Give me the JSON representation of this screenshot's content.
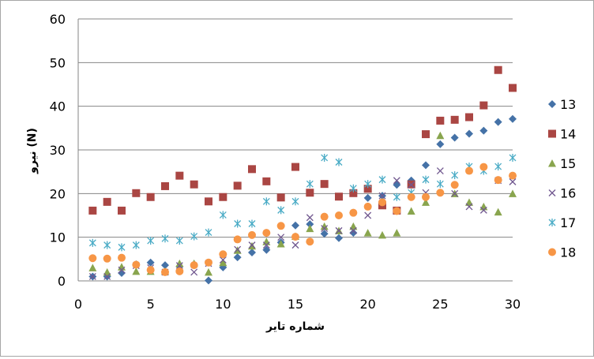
{
  "chart_data": {
    "type": "scatter",
    "xlabel": "شماره تایر",
    "ylabel": "نیرو (N)",
    "xlim": [
      0,
      30
    ],
    "ylim": [
      0,
      60
    ],
    "xticks": [
      0,
      5,
      10,
      15,
      20,
      25,
      30
    ],
    "yticks": [
      0,
      10,
      20,
      30,
      40,
      50,
      60
    ],
    "grid": "horizontal",
    "legend_position": "right",
    "series": [
      {
        "name": "13",
        "marker": "diamond",
        "color": "#4572A7",
        "x": [
          1,
          2,
          3,
          4,
          5,
          6,
          7,
          8,
          9,
          10,
          11,
          12,
          13,
          14,
          15,
          16,
          17,
          18,
          19,
          20,
          21,
          22,
          23,
          24,
          25,
          26,
          27,
          28,
          29,
          30
        ],
        "y": [
          1,
          1,
          1.8,
          3.8,
          4.2,
          3.6,
          3.3,
          3.7,
          0.1,
          3.1,
          5.4,
          6.5,
          7.1,
          8.8,
          12.7,
          13,
          10.8,
          9.8,
          11,
          19,
          19.5,
          22,
          23,
          26.5,
          31.3,
          32.8,
          33.7,
          34.4,
          36.4,
          37.1
        ]
      },
      {
        "name": "14",
        "marker": "square",
        "color": "#AA4643",
        "x": [
          1,
          2,
          3,
          4,
          5,
          6,
          7,
          8,
          9,
          10,
          11,
          12,
          13,
          14,
          15,
          16,
          17,
          18,
          19,
          20,
          21,
          22,
          23,
          24,
          25,
          26,
          27,
          28,
          29,
          30
        ],
        "y": [
          16.1,
          18.1,
          16.1,
          20.1,
          19.2,
          21.7,
          24.1,
          22.1,
          18.2,
          19.2,
          21.8,
          25.6,
          22.8,
          19.1,
          26.1,
          20.2,
          22.2,
          19.3,
          20.1,
          21.1,
          17.3,
          16.1,
          22.1,
          33.6,
          36.7,
          36.9,
          37.5,
          40.2,
          48.3,
          44.2
        ]
      },
      {
        "name": "15",
        "marker": "triangle",
        "color": "#89A54E",
        "x": [
          1,
          2,
          3,
          4,
          5,
          6,
          7,
          8,
          9,
          10,
          11,
          12,
          13,
          14,
          15,
          16,
          17,
          18,
          19,
          20,
          21,
          22,
          23,
          24,
          25,
          26,
          27,
          28,
          29,
          30
        ],
        "y": [
          3,
          2,
          3.2,
          2.2,
          2.2,
          2.2,
          4,
          4,
          2,
          4.2,
          7,
          8,
          9,
          8.5,
          10.2,
          12,
          12.5,
          11.5,
          12.5,
          11,
          10.5,
          11,
          16,
          18,
          33.3,
          20,
          18,
          17,
          15.8,
          20
        ]
      },
      {
        "name": "16",
        "marker": "x",
        "color": "#71588F",
        "x": [
          1,
          2,
          3,
          4,
          5,
          6,
          7,
          8,
          9,
          10,
          11,
          12,
          13,
          14,
          15,
          16,
          17,
          18,
          19,
          20,
          21,
          22,
          23,
          24,
          25,
          26,
          27,
          28,
          29,
          30
        ],
        "y": [
          1,
          1,
          2.5,
          3.5,
          3,
          2,
          3.5,
          2,
          4,
          4.8,
          7.2,
          8.2,
          8.2,
          10,
          8.2,
          14.5,
          12,
          11.5,
          11.5,
          15,
          19.5,
          23,
          22,
          20.2,
          25.2,
          20,
          17,
          16.2,
          23,
          22.7
        ]
      },
      {
        "name": "17",
        "marker": "star",
        "color": "#4BACC6",
        "x": [
          1,
          2,
          3,
          4,
          5,
          6,
          7,
          8,
          9,
          10,
          11,
          12,
          13,
          14,
          15,
          16,
          17,
          18,
          19,
          20,
          21,
          22,
          23,
          24,
          25,
          26,
          27,
          28,
          29,
          30
        ],
        "y": [
          8.7,
          8.2,
          7.7,
          8.2,
          9.2,
          9.7,
          9.2,
          10.2,
          11.1,
          15.1,
          13.1,
          13.1,
          18.2,
          16.2,
          18.2,
          22.2,
          28.2,
          27.2,
          21.2,
          22.2,
          23.2,
          19.2,
          20.2,
          23.2,
          22.2,
          24.2,
          26.2,
          25.2,
          26.2,
          28.2
        ]
      },
      {
        "name": "18",
        "marker": "circle",
        "color": "#F79646",
        "x": [
          1,
          2,
          3,
          4,
          5,
          6,
          7,
          8,
          9,
          10,
          11,
          12,
          13,
          14,
          15,
          16,
          17,
          18,
          19,
          20,
          21,
          22,
          23,
          24,
          25,
          26,
          27,
          28,
          29,
          30
        ],
        "y": [
          5.2,
          5.1,
          5.3,
          3.7,
          2.5,
          2,
          2.2,
          3.6,
          4.2,
          6.1,
          9.5,
          10.5,
          11,
          12.6,
          10.1,
          9,
          14.7,
          15,
          15.6,
          17,
          18,
          16,
          19.2,
          19.2,
          20.2,
          22,
          25.2,
          26.1,
          23.1,
          24.1
        ]
      }
    ]
  }
}
